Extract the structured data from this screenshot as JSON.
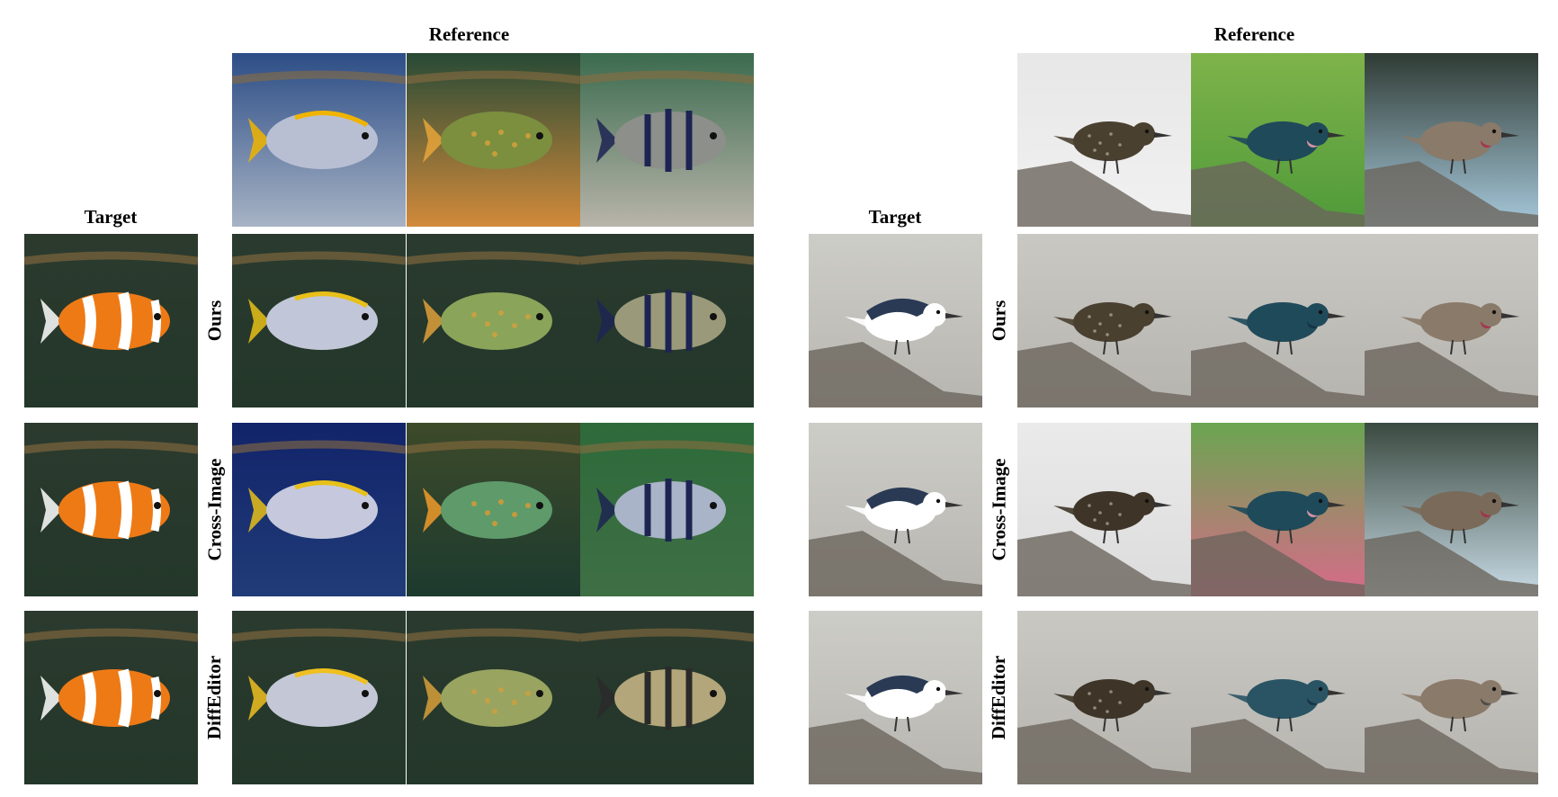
{
  "headers": {
    "reference": "Reference",
    "target": "Target"
  },
  "method_labels": {
    "ours": "Ours",
    "cross_image": "Cross-Image",
    "diffeditor": "DiffEditor"
  },
  "panels": [
    {
      "subject": "fish",
      "references": [
        {
          "bg_top": "#2c4d86",
          "bg_bottom": "#a7b3c5",
          "body": "#b9bfd3",
          "accent": "#f0b400",
          "stripe": "none"
        },
        {
          "bg_top": "#274a36",
          "bg_bottom": "#d28a3a",
          "body": "#7b8f3f",
          "accent": "#e6a53a",
          "stripe": "spots"
        },
        {
          "bg_top": "#3b6b4e",
          "bg_bottom": "#b8b4aa",
          "body": "#8c8f8a",
          "accent": "#1d2452",
          "stripe": "bars"
        }
      ],
      "target": {
        "bg_top": "#2c3a2e",
        "bg_bottom": "#23372a",
        "body": "#ee7a16",
        "accent": "#ffffff",
        "stripe": "clown"
      },
      "rows": [
        {
          "method": "ours",
          "cells": [
            {
              "bg_top": "#2a3a2e",
              "bg_bottom": "#23372a",
              "body": "#c1c7d8",
              "accent": "#e8c018",
              "stripe": "none"
            },
            {
              "bg_top": "#2a3a2e",
              "bg_bottom": "#23372a",
              "body": "#8aa45a",
              "accent": "#e0a03a",
              "stripe": "spots"
            },
            {
              "bg_top": "#2a3a2e",
              "bg_bottom": "#23372a",
              "body": "#9a9a7a",
              "accent": "#1d2452",
              "stripe": "bars"
            }
          ]
        },
        {
          "method": "cross_image",
          "cells": [
            {
              "bg_top": "#12236a",
              "bg_bottom": "#203c78",
              "body": "#c6c9dd",
              "accent": "#e8c018",
              "stripe": "none"
            },
            {
              "bg_top": "#3d4a2a",
              "bg_bottom": "#1d3a2e",
              "body": "#5e9a6a",
              "accent": "#f09a2a",
              "stripe": "spots"
            },
            {
              "bg_top": "#2d6a3a",
              "bg_bottom": "#3f6f45",
              "body": "#a9b4c8",
              "accent": "#1d2452",
              "stripe": "bars"
            }
          ]
        },
        {
          "method": "diffeditor",
          "cells": [
            {
              "bg_top": "#2a3a2e",
              "bg_bottom": "#23372a",
              "body": "#c4c8d6",
              "accent": "#f0c020",
              "stripe": "none"
            },
            {
              "bg_top": "#2a3a2e",
              "bg_bottom": "#23372a",
              "body": "#98a460",
              "accent": "#d8a03a",
              "stripe": "spots"
            },
            {
              "bg_top": "#2a3a2e",
              "bg_bottom": "#23372a",
              "body": "#b3a67a",
              "accent": "#2a2a2a",
              "stripe": "bars"
            }
          ]
        }
      ]
    },
    {
      "subject": "bird",
      "references": [
        {
          "bg_top": "#e7e7e7",
          "bg_bottom": "#f1f1f1",
          "body": "#4a4030",
          "accent": "#9a2222",
          "stripe": "speckle"
        },
        {
          "bg_top": "#7fb34a",
          "bg_bottom": "#4f9a3a",
          "body": "#1f4a5a",
          "accent": "#f0a0b0",
          "stripe": "none"
        },
        {
          "bg_top": "#2f3b34",
          "bg_bottom": "#a7c9dc",
          "body": "#8a7a6a",
          "accent": "#a82a4a",
          "stripe": "none"
        }
      ],
      "target": {
        "bg_top": "#cdcdc8",
        "bg_bottom": "#b7b5b0",
        "body": "#ffffff",
        "accent": "#2a3a55",
        "stripe": "nuthatch"
      },
      "rows": [
        {
          "method": "ours",
          "cells": [
            {
              "bg_top": "#c9c8c3",
              "bg_bottom": "#b6b4af",
              "body": "#4a4030",
              "accent": "#2a2218",
              "stripe": "speckle"
            },
            {
              "bg_top": "#c9c8c3",
              "bg_bottom": "#b6b4af",
              "body": "#1f4a5a",
              "accent": "#143040",
              "stripe": "none"
            },
            {
              "bg_top": "#c9c8c3",
              "bg_bottom": "#b6b4af",
              "body": "#8a7a6a",
              "accent": "#a82a4a",
              "stripe": "none"
            }
          ]
        },
        {
          "method": "cross_image",
          "cells": [
            {
              "bg_top": "#eaeaea",
              "bg_bottom": "#dcdcdc",
              "body": "#3e3528",
              "accent": "#9a2222",
              "stripe": "speckle"
            },
            {
              "bg_top": "#6aa550",
              "bg_bottom": "#d86a8a",
              "body": "#1f4a5a",
              "accent": "#f0a0b0",
              "stripe": "none"
            },
            {
              "bg_top": "#3a4a40",
              "bg_bottom": "#c9dbe6",
              "body": "#7a6a5a",
              "accent": "#a82a4a",
              "stripe": "none"
            }
          ]
        },
        {
          "method": "diffeditor",
          "cells": [
            {
              "bg_top": "#c9c8c3",
              "bg_bottom": "#b6b4af",
              "body": "#3e3528",
              "accent": "#2a2218",
              "stripe": "speckle"
            },
            {
              "bg_top": "#c9c8c3",
              "bg_bottom": "#b6b4af",
              "body": "#2a5464",
              "accent": "#143040",
              "stripe": "none"
            },
            {
              "bg_top": "#c9c8c3",
              "bg_bottom": "#b6b4af",
              "body": "#8a7a6a",
              "accent": "#444444",
              "stripe": "none"
            }
          ]
        }
      ]
    }
  ]
}
